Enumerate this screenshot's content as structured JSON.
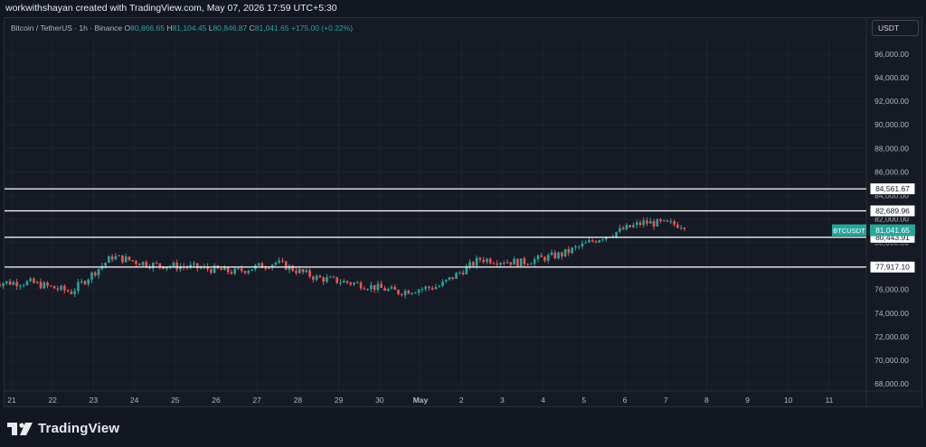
{
  "header": {
    "attribution": "workwithshayan created with TradingView.com, May 07, 2026 17:59 UTC+5:30"
  },
  "legend": {
    "symbol": "Bitcoin / TetherUS · 1h · Binance",
    "open_label": "O",
    "open": "80,866.65",
    "high_label": "H",
    "high": "81,104.45",
    "low_label": "L",
    "low": "80,846.87",
    "close_label": "C",
    "close": "81,041.65",
    "change": "+175.00 (+0.22%)"
  },
  "currency_button": "USDT",
  "footer": {
    "brand": "TradingView",
    "logo_icon": "tradingview-logo-icon"
  },
  "colors": {
    "background": "#161a25",
    "grid": "#1f2330",
    "up": "#26a69a",
    "down": "#ef5350",
    "level_line": "#ffffff",
    "price_tag": "#26a69a"
  },
  "chart_data": {
    "type": "candlestick",
    "symbol": "BTCUSDT",
    "timeframe": "1h",
    "ylim": [
      67000,
      98600
    ],
    "y_ticks": [
      "96,000.00",
      "94,000.00",
      "92,000.00",
      "90,000.00",
      "88,000.00",
      "86,000.00",
      "84,000.00",
      "82,000.00",
      "80,000.00",
      "78,000.00",
      "76,000.00",
      "74,000.00",
      "72,000.00",
      "70,000.00",
      "68,000.00"
    ],
    "x_ticks": [
      "21",
      "22",
      "23",
      "24",
      "25",
      "26",
      "27",
      "28",
      "29",
      "30",
      "May",
      "2",
      "3",
      "4",
      "5",
      "6",
      "7",
      "8",
      "9",
      "10",
      "11"
    ],
    "grid": true,
    "last_price": {
      "label": "BTCUSDT",
      "value": 81041.65,
      "text": "81,041.65"
    },
    "horizontal_levels": [
      {
        "value": 84561.67,
        "text": "84,561.67"
      },
      {
        "value": 82689.96,
        "text": "82,689.96"
      },
      {
        "value": 80443.91,
        "text": "80,443.91"
      },
      {
        "value": 77917.1,
        "text": "77,917.10"
      }
    ],
    "price_path_daily": {
      "days": [
        "21",
        "22",
        "23",
        "24",
        "25",
        "26",
        "27",
        "28",
        "29",
        "30",
        "May",
        "2",
        "3",
        "4",
        "5",
        "6",
        "7"
      ],
      "close_approx": [
        76600,
        75800,
        78800,
        78100,
        77900,
        77500,
        78300,
        77000,
        76500,
        75800,
        76300,
        78600,
        78300,
        79000,
        80500,
        81700,
        81500
      ]
    }
  }
}
